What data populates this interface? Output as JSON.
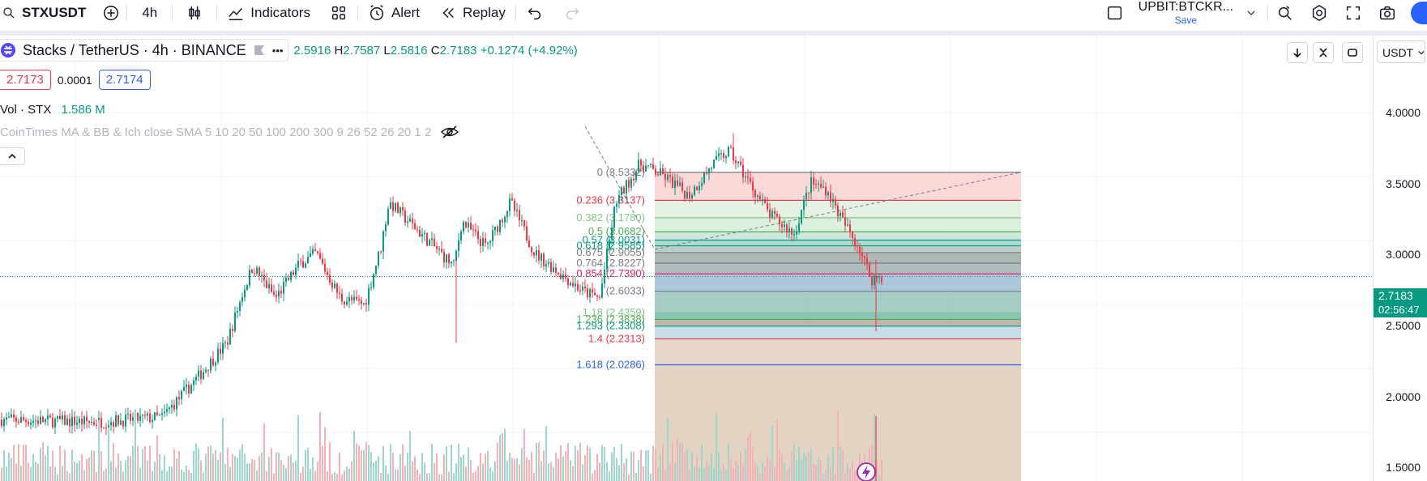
{
  "toolbar": {
    "symbol": "STXUSDT",
    "interval": "4h",
    "indicators_label": "Indicators",
    "alert_label": "Alert",
    "replay_label": "Replay",
    "layout_name": "UPBIT:BTCKR...",
    "layout_save": "Save"
  },
  "legend": {
    "title": "Stacks / TetherUS · 4h · BINANCE",
    "more": "•••",
    "open": "2.5916",
    "high_label": "H",
    "high": "2.7587",
    "low_label": "L",
    "low": "2.5816",
    "close_label": "C",
    "close": "2.7183",
    "change": "+0.1274 (+4.92%)"
  },
  "bidask": {
    "bid": "2.7173",
    "spread": "0.0001",
    "ask": "2.7174"
  },
  "volume_legend": {
    "label": "Vol · STX",
    "value": "1.586 M"
  },
  "ma_legend": {
    "label": "CoinTimes MA & BB & Ich close SMA 5 10 20 50 100 200 300 9 26 52 26 20 1 2"
  },
  "price_axis": {
    "currency": "USDT",
    "ticks": [
      "4.0000",
      "3.5000",
      "3.0000",
      "2.5000",
      "2.0000",
      "1.5000"
    ],
    "current_price": "2.7183",
    "countdown": "02:56:47"
  },
  "fib_levels": [
    {
      "label": "0 (3.5332)",
      "color": "#787b86",
      "fill": "#ffffff"
    },
    {
      "label": "0.236 (3.3137)",
      "color": "#f23645",
      "fill": "#fcd5d5"
    },
    {
      "label": "0.382 (3.1780)",
      "color": "#81c784",
      "fill": "#e2f1e0"
    },
    {
      "label": "0.5 (3.0682)",
      "color": "#4caf50",
      "fill": "#d8eedb"
    },
    {
      "label": "0.57 (3.0031)",
      "color": "#089981",
      "fill": "#c9e6dc"
    },
    {
      "label": "0.618 (2.9585)",
      "color": "#089981",
      "fill": "#a3d6ca"
    },
    {
      "label": "0.675 (2.9055)",
      "color": "#787b86",
      "fill": "#b5c9c4"
    },
    {
      "label": "0.764 (2.8227)",
      "color": "#787b86",
      "fill": "#a3b0a9"
    },
    {
      "label": "0.854 (2.7390)",
      "color": "#e91e63",
      "fill": "#a9b5b8"
    },
    {
      "label": "(2.6033)",
      "color": "#787b86",
      "fill": "#a3c1d6"
    },
    {
      "label": "1.18 (2.4359)",
      "color": "#81c784",
      "fill": "#9cc7c0"
    },
    {
      "label": "1.236 (2.3838)",
      "color": "#4caf50",
      "fill": "#7cbfae"
    },
    {
      "label": "1.293 (2.3308)",
      "color": "#089981",
      "fill": "#b8ad9e"
    },
    {
      "label": "1.4 (2.2313)",
      "color": "#f23645",
      "fill": "#c1d9e8"
    },
    {
      "label": "1.618 (2.0286)",
      "color": "#2962ff",
      "fill": "#e3d3c2"
    }
  ],
  "colors": {
    "up": "#089981",
    "down": "#f23645",
    "accent": "#2962ff"
  }
}
